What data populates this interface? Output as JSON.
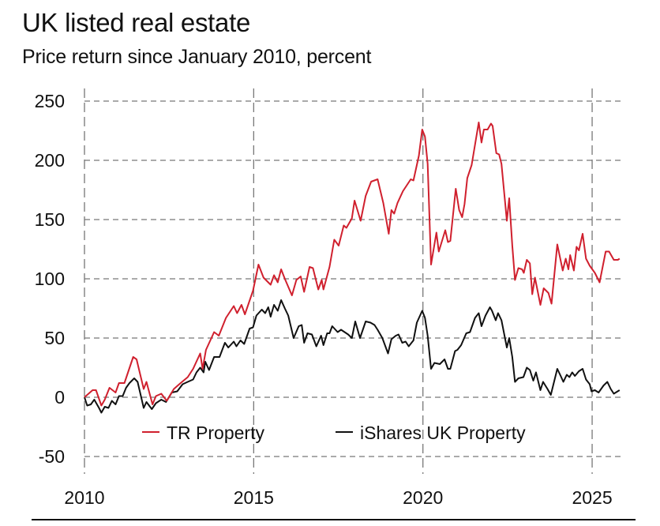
{
  "chart_data": {
    "type": "line",
    "title": "UK listed real estate",
    "subtitle": "Price return since January 2010, percent",
    "xlabel": "",
    "ylabel": "",
    "xlim": [
      2010,
      2025.9
    ],
    "ylim": [
      -50,
      250
    ],
    "x_ticks": [
      2010,
      2015,
      2020,
      2025
    ],
    "x_tick_labels": [
      "2010",
      "2015",
      "2020",
      "2025"
    ],
    "y_ticks": [
      250,
      200,
      150,
      100,
      50,
      0,
      -50
    ],
    "y_tick_labels": [
      "250",
      "200",
      "150",
      "100",
      "50",
      "0",
      "-50"
    ],
    "grid": true,
    "legend_position": "bottom-center",
    "series": [
      {
        "name": "TR Property",
        "color": "#d0202e",
        "points": [
          [
            2010.0,
            0
          ],
          [
            2010.24,
            6
          ],
          [
            2010.34,
            6
          ],
          [
            2010.5,
            -7
          ],
          [
            2010.6,
            -2
          ],
          [
            2010.74,
            8
          ],
          [
            2010.92,
            4
          ],
          [
            2011.02,
            12
          ],
          [
            2011.18,
            12
          ],
          [
            2011.44,
            34
          ],
          [
            2011.54,
            32
          ],
          [
            2011.75,
            7
          ],
          [
            2011.83,
            13
          ],
          [
            2012.01,
            -6
          ],
          [
            2012.11,
            1
          ],
          [
            2012.27,
            3
          ],
          [
            2012.43,
            -3
          ],
          [
            2012.64,
            7
          ],
          [
            2012.84,
            12
          ],
          [
            2013.05,
            17
          ],
          [
            2013.21,
            24
          ],
          [
            2013.42,
            37
          ],
          [
            2013.49,
            24
          ],
          [
            2013.59,
            40
          ],
          [
            2013.83,
            55
          ],
          [
            2013.97,
            52
          ],
          [
            2014.18,
            67
          ],
          [
            2014.41,
            77
          ],
          [
            2014.51,
            71
          ],
          [
            2014.64,
            78
          ],
          [
            2014.74,
            70
          ],
          [
            2014.98,
            90
          ],
          [
            2015.14,
            112
          ],
          [
            2015.29,
            101
          ],
          [
            2015.5,
            95
          ],
          [
            2015.6,
            103
          ],
          [
            2015.71,
            97
          ],
          [
            2015.81,
            108
          ],
          [
            2015.92,
            100
          ],
          [
            2016.13,
            86
          ],
          [
            2016.26,
            99
          ],
          [
            2016.39,
            102
          ],
          [
            2016.49,
            89
          ],
          [
            2016.65,
            110
          ],
          [
            2016.75,
            109
          ],
          [
            2016.91,
            91
          ],
          [
            2017.01,
            99
          ],
          [
            2017.06,
            91
          ],
          [
            2017.24,
            110
          ],
          [
            2017.38,
            133
          ],
          [
            2017.51,
            128
          ],
          [
            2017.66,
            145
          ],
          [
            2017.74,
            143
          ],
          [
            2017.9,
            151
          ],
          [
            2017.98,
            166
          ],
          [
            2018.16,
            149
          ],
          [
            2018.31,
            170
          ],
          [
            2018.47,
            182
          ],
          [
            2018.66,
            184
          ],
          [
            2018.83,
            164
          ],
          [
            2018.99,
            138
          ],
          [
            2019.07,
            158
          ],
          [
            2019.15,
            155
          ],
          [
            2019.25,
            164
          ],
          [
            2019.41,
            174
          ],
          [
            2019.64,
            184
          ],
          [
            2019.72,
            183
          ],
          [
            2019.88,
            204
          ],
          [
            2019.98,
            226
          ],
          [
            2020.06,
            220
          ],
          [
            2020.14,
            197
          ],
          [
            2020.24,
            112
          ],
          [
            2020.4,
            139
          ],
          [
            2020.47,
            123
          ],
          [
            2020.66,
            141
          ],
          [
            2020.74,
            131
          ],
          [
            2020.81,
            132
          ],
          [
            2020.97,
            176
          ],
          [
            2021.07,
            158
          ],
          [
            2021.16,
            152
          ],
          [
            2021.23,
            163
          ],
          [
            2021.31,
            185
          ],
          [
            2021.44,
            196
          ],
          [
            2021.65,
            232
          ],
          [
            2021.73,
            215
          ],
          [
            2021.8,
            226
          ],
          [
            2021.91,
            226
          ],
          [
            2022.01,
            231
          ],
          [
            2022.06,
            229
          ],
          [
            2022.17,
            206
          ],
          [
            2022.25,
            205
          ],
          [
            2022.32,
            197
          ],
          [
            2022.48,
            149
          ],
          [
            2022.55,
            168
          ],
          [
            2022.64,
            128
          ],
          [
            2022.72,
            99
          ],
          [
            2022.82,
            109
          ],
          [
            2022.93,
            108
          ],
          [
            2022.98,
            105
          ],
          [
            2023.07,
            116
          ],
          [
            2023.16,
            113
          ],
          [
            2023.23,
            87
          ],
          [
            2023.31,
            101
          ],
          [
            2023.47,
            78
          ],
          [
            2023.57,
            92
          ],
          [
            2023.71,
            88
          ],
          [
            2023.8,
            79
          ],
          [
            2023.97,
            129
          ],
          [
            2024.13,
            107
          ],
          [
            2024.22,
            117
          ],
          [
            2024.3,
            108
          ],
          [
            2024.35,
            120
          ],
          [
            2024.46,
            107
          ],
          [
            2024.54,
            127
          ],
          [
            2024.61,
            124
          ],
          [
            2024.72,
            138
          ],
          [
            2024.82,
            117
          ],
          [
            2024.93,
            111
          ],
          [
            2025.08,
            105
          ],
          [
            2025.22,
            97
          ],
          [
            2025.4,
            123
          ],
          [
            2025.5,
            123
          ],
          [
            2025.64,
            116
          ],
          [
            2025.76,
            116
          ],
          [
            2025.81,
            117
          ]
        ]
      },
      {
        "name": "iShares UK Property",
        "color": "#111111",
        "points": [
          [
            2010.0,
            0
          ],
          [
            2010.08,
            -7
          ],
          [
            2010.19,
            -6
          ],
          [
            2010.29,
            -2
          ],
          [
            2010.43,
            -9
          ],
          [
            2010.5,
            -13
          ],
          [
            2010.6,
            -8
          ],
          [
            2010.71,
            -9
          ],
          [
            2010.81,
            -3
          ],
          [
            2010.92,
            -6
          ],
          [
            2011.02,
            1
          ],
          [
            2011.13,
            1
          ],
          [
            2011.23,
            8
          ],
          [
            2011.33,
            12
          ],
          [
            2011.47,
            16
          ],
          [
            2011.57,
            13
          ],
          [
            2011.75,
            -9
          ],
          [
            2011.83,
            -4
          ],
          [
            2011.99,
            -10
          ],
          [
            2012.11,
            -5
          ],
          [
            2012.27,
            -2
          ],
          [
            2012.41,
            -4
          ],
          [
            2012.58,
            4
          ],
          [
            2012.74,
            5
          ],
          [
            2012.9,
            11
          ],
          [
            2013.05,
            13
          ],
          [
            2013.21,
            15
          ],
          [
            2013.31,
            21
          ],
          [
            2013.42,
            25
          ],
          [
            2013.52,
            21
          ],
          [
            2013.57,
            30
          ],
          [
            2013.68,
            23
          ],
          [
            2013.83,
            34
          ],
          [
            2013.99,
            34
          ],
          [
            2014.15,
            46
          ],
          [
            2014.25,
            42
          ],
          [
            2014.41,
            47
          ],
          [
            2014.49,
            43
          ],
          [
            2014.61,
            48
          ],
          [
            2014.72,
            45
          ],
          [
            2014.88,
            58
          ],
          [
            2014.98,
            59
          ],
          [
            2015.08,
            69
          ],
          [
            2015.24,
            74
          ],
          [
            2015.34,
            71
          ],
          [
            2015.43,
            76
          ],
          [
            2015.5,
            68
          ],
          [
            2015.6,
            78
          ],
          [
            2015.71,
            73
          ],
          [
            2015.81,
            82
          ],
          [
            2015.92,
            75
          ],
          [
            2016.02,
            69
          ],
          [
            2016.18,
            50
          ],
          [
            2016.33,
            60
          ],
          [
            2016.42,
            61
          ],
          [
            2016.49,
            46
          ],
          [
            2016.59,
            54
          ],
          [
            2016.72,
            53
          ],
          [
            2016.85,
            43
          ],
          [
            2016.99,
            52
          ],
          [
            2017.06,
            44
          ],
          [
            2017.17,
            54
          ],
          [
            2017.24,
            54
          ],
          [
            2017.32,
            60
          ],
          [
            2017.48,
            55
          ],
          [
            2017.58,
            57
          ],
          [
            2017.79,
            53
          ],
          [
            2017.9,
            50
          ],
          [
            2018.0,
            64
          ],
          [
            2018.14,
            50
          ],
          [
            2018.31,
            64
          ],
          [
            2018.45,
            63
          ],
          [
            2018.57,
            61
          ],
          [
            2018.66,
            57
          ],
          [
            2018.8,
            50
          ],
          [
            2018.97,
            37
          ],
          [
            2019.07,
            49
          ],
          [
            2019.2,
            52
          ],
          [
            2019.28,
            53
          ],
          [
            2019.39,
            46
          ],
          [
            2019.49,
            47
          ],
          [
            2019.58,
            43
          ],
          [
            2019.72,
            48
          ],
          [
            2019.82,
            63
          ],
          [
            2019.98,
            73
          ],
          [
            2020.06,
            67
          ],
          [
            2020.14,
            52
          ],
          [
            2020.24,
            24
          ],
          [
            2020.34,
            29
          ],
          [
            2020.5,
            28
          ],
          [
            2020.64,
            32
          ],
          [
            2020.74,
            24
          ],
          [
            2020.81,
            24
          ],
          [
            2020.95,
            39
          ],
          [
            2021.02,
            40
          ],
          [
            2021.13,
            44
          ],
          [
            2021.28,
            54
          ],
          [
            2021.39,
            55
          ],
          [
            2021.54,
            67
          ],
          [
            2021.65,
            71
          ],
          [
            2021.73,
            60
          ],
          [
            2021.85,
            69
          ],
          [
            2021.98,
            76
          ],
          [
            2022.04,
            73
          ],
          [
            2022.15,
            65
          ],
          [
            2022.22,
            71
          ],
          [
            2022.32,
            65
          ],
          [
            2022.48,
            42
          ],
          [
            2022.55,
            50
          ],
          [
            2022.64,
            34
          ],
          [
            2022.72,
            13
          ],
          [
            2022.82,
            16
          ],
          [
            2022.97,
            17
          ],
          [
            2023.07,
            25
          ],
          [
            2023.16,
            23
          ],
          [
            2023.26,
            14
          ],
          [
            2023.34,
            21
          ],
          [
            2023.47,
            6
          ],
          [
            2023.55,
            13
          ],
          [
            2023.68,
            7
          ],
          [
            2023.78,
            2
          ],
          [
            2023.97,
            24
          ],
          [
            2024.07,
            18
          ],
          [
            2024.15,
            13
          ],
          [
            2024.25,
            19
          ],
          [
            2024.33,
            17
          ],
          [
            2024.41,
            21
          ],
          [
            2024.49,
            18
          ],
          [
            2024.61,
            22
          ],
          [
            2024.72,
            24
          ],
          [
            2024.82,
            15
          ],
          [
            2024.93,
            11
          ],
          [
            2024.98,
            5
          ],
          [
            2025.08,
            6
          ],
          [
            2025.19,
            4
          ],
          [
            2025.34,
            10
          ],
          [
            2025.45,
            13
          ],
          [
            2025.55,
            7
          ],
          [
            2025.64,
            3
          ],
          [
            2025.81,
            6
          ]
        ]
      }
    ]
  }
}
